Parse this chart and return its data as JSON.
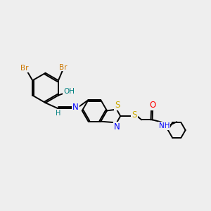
{
  "bg_color": "#eeeeee",
  "colors": {
    "Br": "#cc7700",
    "O": "#ff0000",
    "OH": "#008080",
    "H": "#008080",
    "N": "#0000ff",
    "S": "#ccaa00",
    "C": "#000000",
    "NH": "#0000ff"
  }
}
